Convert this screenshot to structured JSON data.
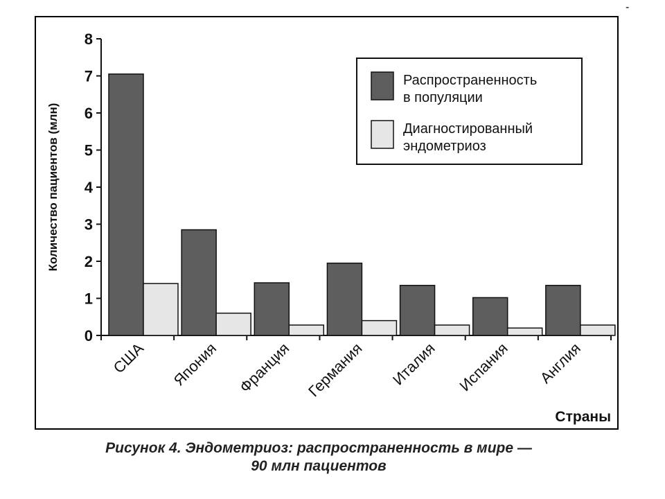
{
  "corner_mark": "-",
  "chart_data": {
    "type": "bar",
    "categories": [
      "США",
      "Япония",
      "Франция",
      "Германия",
      "Италия",
      "Испания",
      "Англия"
    ],
    "series": [
      {
        "name": "Распространенность в популяции",
        "values": [
          7.05,
          2.85,
          1.42,
          1.95,
          1.35,
          1.02,
          1.35
        ],
        "color": "#5e5e5e"
      },
      {
        "name": "Диагностированный эндометриоз",
        "values": [
          1.4,
          0.6,
          0.28,
          0.4,
          0.28,
          0.2,
          0.28
        ],
        "color": "#e6e6e6"
      }
    ],
    "legend_lines": [
      [
        "Распространенность",
        "в популяции"
      ],
      [
        "Диагностированный",
        "эндометриоз"
      ]
    ],
    "ylabel": "Количество пациентов (млн)",
    "xlabel": "Страны",
    "ylim": [
      0,
      8
    ],
    "yticks": [
      0,
      1,
      2,
      3,
      4,
      5,
      6,
      7,
      8
    ],
    "legend_position": "top-right",
    "grid": false
  },
  "caption": {
    "line1": "Рисунок 4. Эндометриоз: распространенность в мире —",
    "line2": "90 млн пациентов"
  }
}
